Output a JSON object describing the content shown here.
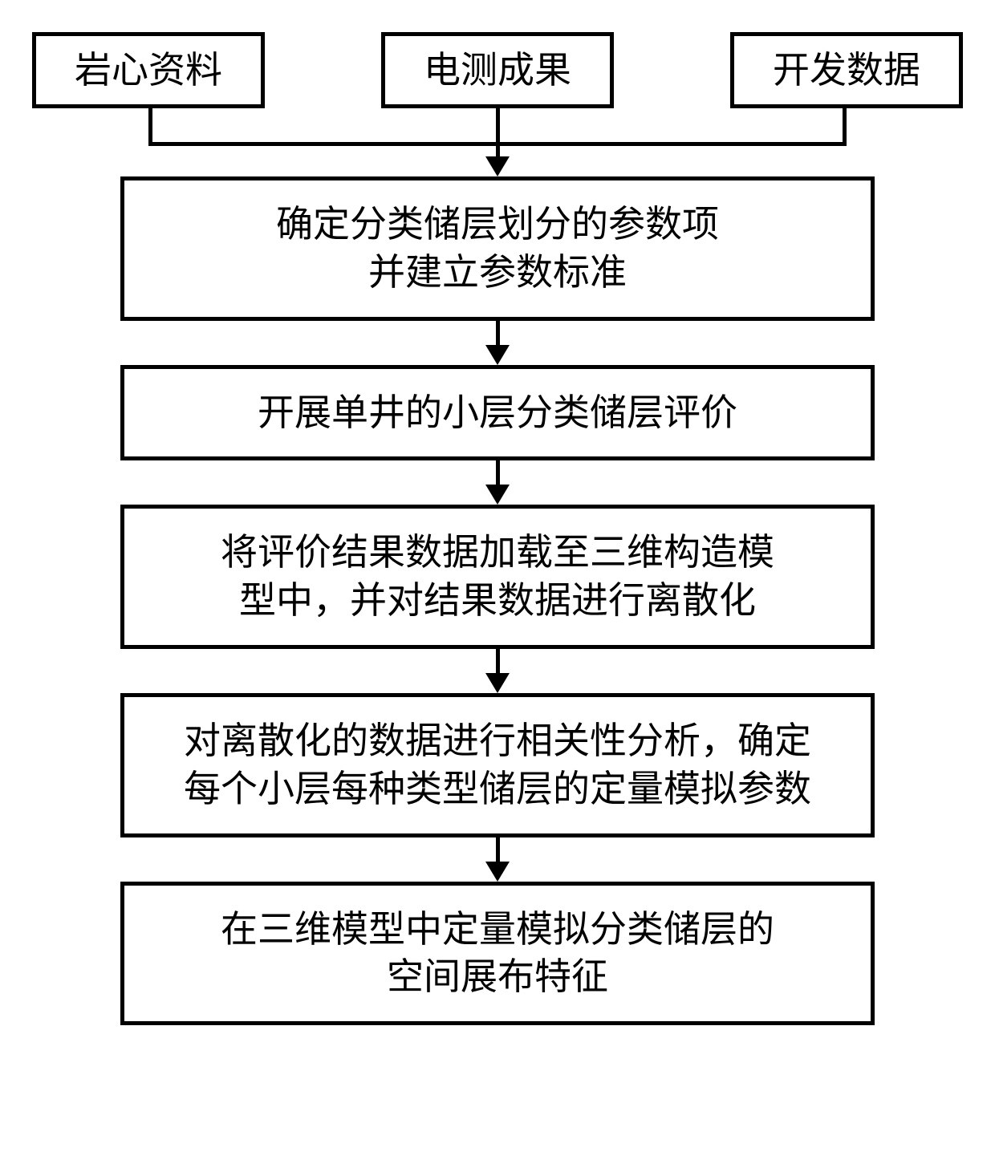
{
  "flowchart": {
    "type": "flowchart",
    "background_color": "#ffffff",
    "border_color": "#000000",
    "border_width": 5,
    "text_color": "#000000",
    "font_family": "SimSun",
    "top_box_fontsize": 46,
    "main_box_fontsize": 46,
    "arrow_color": "#000000",
    "top_inputs": [
      {
        "label": "岩心资料"
      },
      {
        "label": "电测成果"
      },
      {
        "label": "开发数据"
      }
    ],
    "steps": [
      {
        "label": "确定分类储层划分的参数项\n并建立参数标准"
      },
      {
        "label": "开展单井的小层分类储层评价"
      },
      {
        "label": "将评价结果数据加载至三维构造模\n型中，并对结果数据进行离散化"
      },
      {
        "label": "对离散化的数据进行相关性分析，确定\n每个小层每种类型储层的定量模拟参数"
      },
      {
        "label": "在三维模型中定量模拟分类储层的\n空间展布特征"
      }
    ]
  }
}
